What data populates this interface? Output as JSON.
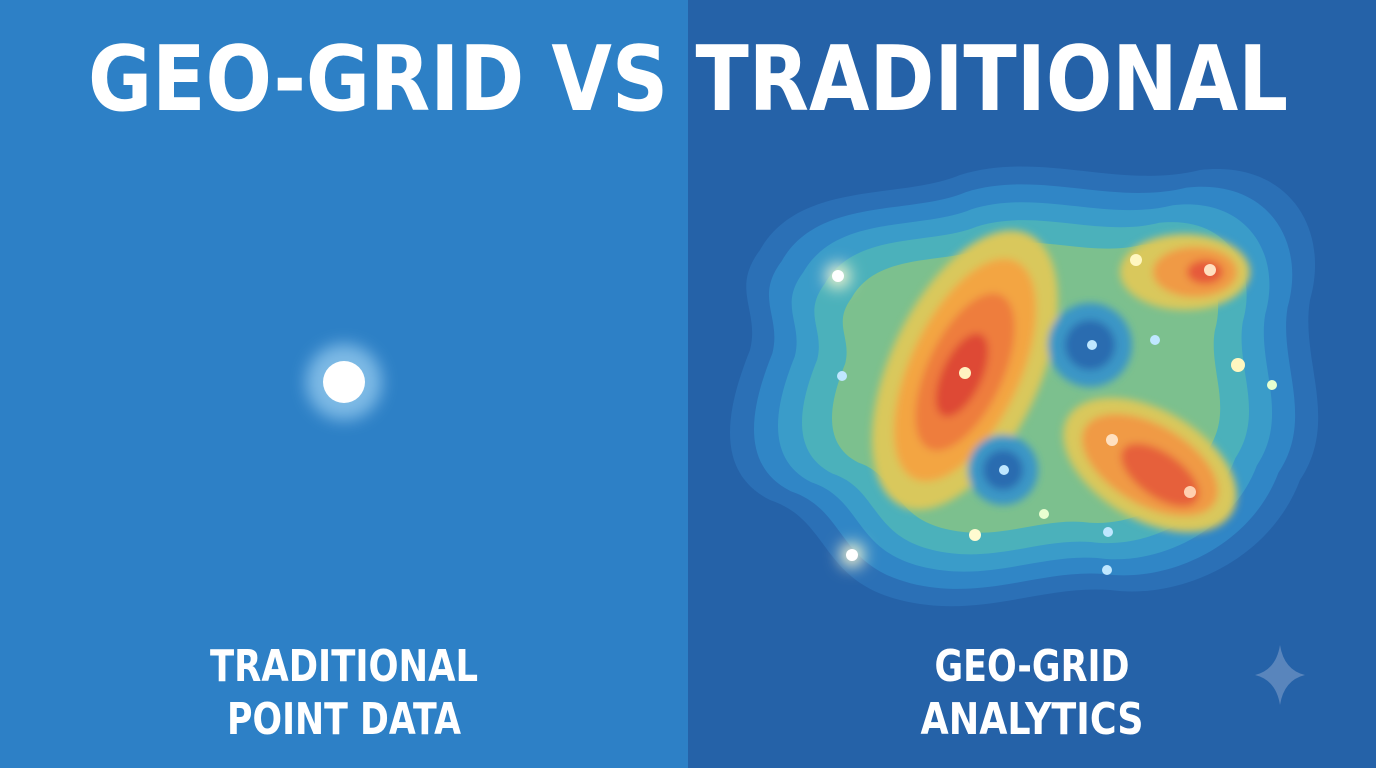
{
  "title": "GEO-GRID VS TRADITIONAL",
  "left_panel": {
    "label_lines": [
      "TRADITIONAL",
      "POINT DATA"
    ]
  },
  "right_panel": {
    "label_lines": [
      "GEO-GRID",
      "ANALYTICS"
    ]
  }
}
